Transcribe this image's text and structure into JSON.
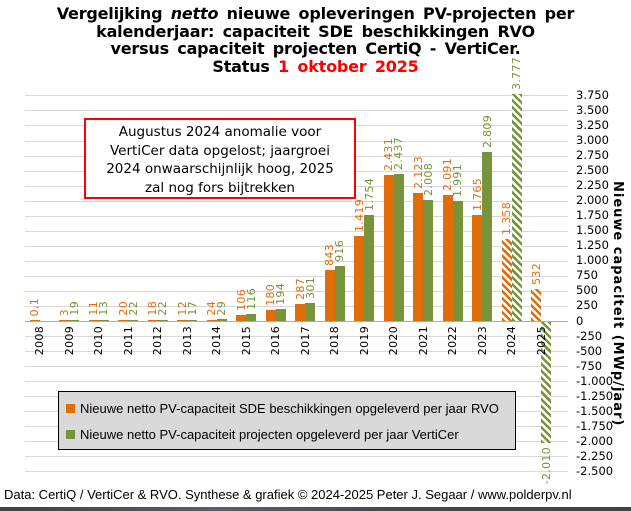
{
  "title": {
    "line1_pre": "Vergelijking",
    "line1_italic": "netto",
    "line1_post": "nieuwe opleveringen PV-projecten per",
    "line2": "kalenderjaar: capaciteit SDE beschikkingen RVO",
    "line3": "versus capaciteit projecten CertiQ - VertiCer.",
    "status_label": "Status",
    "status_value": "1 oktober 2025"
  },
  "annotation": {
    "lines": [
      "Augustus 2024 anomalie voor",
      "VertiCer data opgelost; jaargroei",
      "2024 onwaarschijnlijk hoog, 2025",
      "zal nog fors bijtrekken"
    ]
  },
  "axis": {
    "y_title": "Nieuwe capaciteit (MWp/jaar)",
    "y_max": 3750,
    "y_min": -2500,
    "y_step": 250,
    "y_tick_labels": [
      "3.750",
      "3.500",
      "3.250",
      "3.000",
      "2.750",
      "2.500",
      "2.250",
      "2.000",
      "1.750",
      "1.500",
      "1.250",
      "1.000",
      "750",
      "500",
      "250",
      "0",
      "-250",
      "-500",
      "-750",
      "-1.000",
      "-1.250",
      "-1.500",
      "-1.750",
      "-2.000",
      "-2.250",
      "-2.500"
    ]
  },
  "legend": {
    "items": [
      {
        "label": "Nieuwe netto PV-capaciteit SDE beschikkingen opgeleverd per jaar RVO",
        "color": "#E36C0A",
        "swatch": "orange-square-icon"
      },
      {
        "label": "Nieuwe netto PV-capaciteit projecten opgeleverd per jaar VertiCer",
        "color": "#77933C",
        "swatch": "green-square-icon"
      }
    ]
  },
  "footer": {
    "text": "Data: CertiQ / VertiCer & RVO.  Synthese & grafiek © 2024-2025 Peter J. Segaar / www.polderpv.nl"
  },
  "colors": {
    "rvo_orange": "#E36C0A",
    "verticer_green": "#77933C",
    "status_red": "#FF0000",
    "gridline": "#D8D8D8",
    "legend_bg": "#D9D9D9"
  },
  "chart_data": {
    "type": "bar",
    "title": "Vergelijking netto nieuwe opleveringen PV-projecten per kalenderjaar: capaciteit SDE beschikkingen RVO versus capaciteit projecten CertiQ - VertiCer. Status 1 oktober 2025",
    "ylabel": "Nieuwe capaciteit (MWp/jaar)",
    "ylim": [
      -2500,
      3750
    ],
    "grid": true,
    "legend_position": "bottom-inside",
    "categories": [
      "2008",
      "2009",
      "2010",
      "2011",
      "2012",
      "2013",
      "2014",
      "2015",
      "2016",
      "2017",
      "2018",
      "2019",
      "2020",
      "2021",
      "2022",
      "2023",
      "2024",
      "2025"
    ],
    "series": [
      {
        "name": "Nieuwe netto PV-capaciteit SDE beschikkingen opgeleverd per jaar RVO",
        "color": "#E36C0A",
        "values": [
          0.1,
          3,
          11,
          20,
          18,
          12,
          24,
          106,
          180,
          287,
          843,
          1419,
          2431,
          2123,
          2091,
          1765,
          1358,
          532
        ],
        "labels": [
          "0,1",
          "3",
          "11",
          "20",
          "18",
          "12",
          "24",
          "106",
          "180",
          "287",
          "843",
          "1.419",
          "2.431",
          "2.123",
          "2.091",
          "1.765",
          "1.358",
          "532"
        ],
        "hatched_from_index": 16
      },
      {
        "name": "Nieuwe netto PV-capaciteit projecten opgeleverd per jaar VertiCer",
        "color": "#77933C",
        "values": [
          null,
          19,
          13,
          22,
          22,
          17,
          29,
          116,
          194,
          301,
          916,
          1754,
          2437,
          2008,
          1991,
          2809,
          3777,
          -2010
        ],
        "labels": [
          null,
          "19",
          "13",
          "22",
          "22",
          "17",
          "29",
          "116",
          "194",
          "301",
          "916",
          "1.754",
          "2.437",
          "2.008",
          "1.991",
          "2.809",
          "3.777",
          "-2.010"
        ],
        "hatched_from_index": 16
      }
    ]
  }
}
